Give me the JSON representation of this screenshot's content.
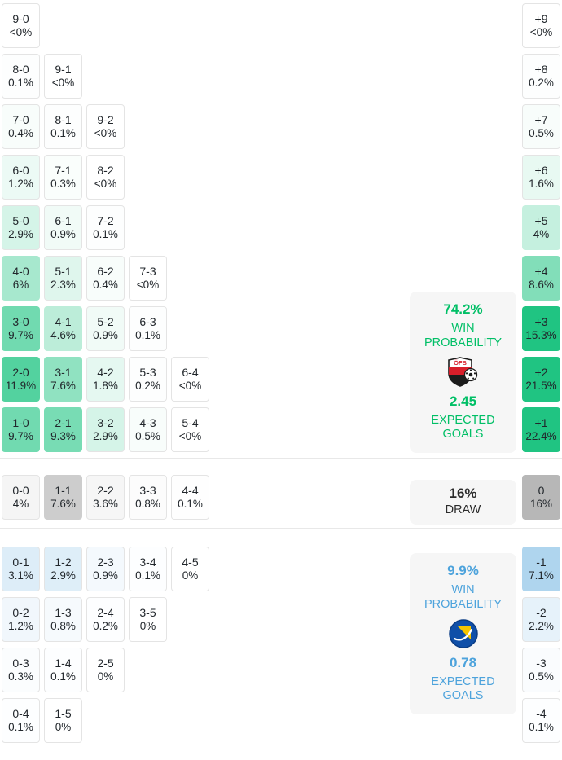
{
  "colors": {
    "win_base": "#17c27d",
    "draw_base": "#6f6f6f",
    "loss_base": "#4a9fd8",
    "win_accent": "#00bf66",
    "loss_accent": "#4da3dc",
    "draw_accent": "#2c2c2c",
    "panel_bg": "#f6f6f6",
    "cell_border": "#e4e4e4",
    "text_dark": "#22272c"
  },
  "icons": {
    "home_crest": "oefb-austria-crest",
    "away_crest": "bosnia-herzegovina-crest"
  },
  "chart_data": {
    "type": "heatmap",
    "description": "Correct-score probability matrix (home score - away score) with goal-difference totals in the right column; green = home win scorelines, grey = draws, blue = away win scorelines; cell shade intensity encodes probability",
    "legend_position": "none",
    "panels": {
      "home": {
        "probability": "74.2%",
        "probability_label": "WIN PROBABILITY",
        "expected_goals": "2.45",
        "expected_goals_label": "EXPECTED GOALS"
      },
      "draw": {
        "probability": "16%",
        "label": "DRAW"
      },
      "away": {
        "probability": "9.9%",
        "probability_label": "WIN PROBABILITY",
        "expected_goals": "0.78",
        "expected_goals_label": "EXPECTED GOALS"
      }
    },
    "sections": {
      "win": {
        "rows": [
          {
            "cells": [
              {
                "score": "9-0",
                "pct": "<0%",
                "a": 0
              }
            ],
            "diff": {
              "label": "+9",
              "pct": "<0%",
              "a": 0
            }
          },
          {
            "cells": [
              {
                "score": "8-0",
                "pct": "0.1%",
                "a": 0.01
              },
              {
                "score": "9-1",
                "pct": "<0%",
                "a": 0
              }
            ],
            "diff": {
              "label": "+8",
              "pct": "0.2%",
              "a": 0.01
            }
          },
          {
            "cells": [
              {
                "score": "7-0",
                "pct": "0.4%",
                "a": 0.03
              },
              {
                "score": "8-1",
                "pct": "0.1%",
                "a": 0.01
              },
              {
                "score": "9-2",
                "pct": "<0%",
                "a": 0
              }
            ],
            "diff": {
              "label": "+7",
              "pct": "0.5%",
              "a": 0.03
            }
          },
          {
            "cells": [
              {
                "score": "6-0",
                "pct": "1.2%",
                "a": 0.08
              },
              {
                "score": "7-1",
                "pct": "0.3%",
                "a": 0.02
              },
              {
                "score": "8-2",
                "pct": "<0%",
                "a": 0
              }
            ],
            "diff": {
              "label": "+6",
              "pct": "1.6%",
              "a": 0.1
            }
          },
          {
            "cells": [
              {
                "score": "5-0",
                "pct": "2.9%",
                "a": 0.18
              },
              {
                "score": "6-1",
                "pct": "0.9%",
                "a": 0.06
              },
              {
                "score": "7-2",
                "pct": "0.1%",
                "a": 0.01
              }
            ],
            "diff": {
              "label": "+5",
              "pct": "4%",
              "a": 0.25
            }
          },
          {
            "cells": [
              {
                "score": "4-0",
                "pct": "6%",
                "a": 0.38
              },
              {
                "score": "5-1",
                "pct": "2.3%",
                "a": 0.14
              },
              {
                "score": "6-2",
                "pct": "0.4%",
                "a": 0.03
              },
              {
                "score": "7-3",
                "pct": "<0%",
                "a": 0
              }
            ],
            "diff": {
              "label": "+4",
              "pct": "8.6%",
              "a": 0.54
            }
          },
          {
            "cells": [
              {
                "score": "3-0",
                "pct": "9.7%",
                "a": 0.61
              },
              {
                "score": "4-1",
                "pct": "4.6%",
                "a": 0.29
              },
              {
                "score": "5-2",
                "pct": "0.9%",
                "a": 0.06
              },
              {
                "score": "6-3",
                "pct": "0.1%",
                "a": 0.01
              }
            ],
            "diff": {
              "label": "+3",
              "pct": "15.3%",
              "a": 0.96
            }
          },
          {
            "cells": [
              {
                "score": "2-0",
                "pct": "11.9%",
                "a": 0.74
              },
              {
                "score": "3-1",
                "pct": "7.6%",
                "a": 0.48
              },
              {
                "score": "4-2",
                "pct": "1.8%",
                "a": 0.11
              },
              {
                "score": "5-3",
                "pct": "0.2%",
                "a": 0.01
              },
              {
                "score": "6-4",
                "pct": "<0%",
                "a": 0
              }
            ],
            "diff": {
              "label": "+2",
              "pct": "21.5%",
              "a": 0.96
            }
          },
          {
            "cells": [
              {
                "score": "1-0",
                "pct": "9.7%",
                "a": 0.61
              },
              {
                "score": "2-1",
                "pct": "9.3%",
                "a": 0.58
              },
              {
                "score": "3-2",
                "pct": "2.9%",
                "a": 0.18
              },
              {
                "score": "4-3",
                "pct": "0.5%",
                "a": 0.03
              },
              {
                "score": "5-4",
                "pct": "<0%",
                "a": 0
              }
            ],
            "diff": {
              "label": "+1",
              "pct": "22.4%",
              "a": 0.96
            }
          }
        ]
      },
      "draw": {
        "rows": [
          {
            "cells": [
              {
                "score": "0-0",
                "pct": "4%",
                "a": 0.07
              },
              {
                "score": "1-1",
                "pct": "7.6%",
                "a": 0.35
              },
              {
                "score": "2-2",
                "pct": "3.6%",
                "a": 0.06
              },
              {
                "score": "3-3",
                "pct": "0.8%",
                "a": 0.02
              },
              {
                "score": "4-4",
                "pct": "0.1%",
                "a": 0.01
              }
            ],
            "diff": {
              "label": "0",
              "pct": "16%",
              "a": 0.5
            }
          }
        ]
      },
      "loss": {
        "rows": [
          {
            "cells": [
              {
                "score": "0-1",
                "pct": "3.1%",
                "a": 0.19
              },
              {
                "score": "1-2",
                "pct": "2.9%",
                "a": 0.18
              },
              {
                "score": "2-3",
                "pct": "0.9%",
                "a": 0.06
              },
              {
                "score": "3-4",
                "pct": "0.1%",
                "a": 0.01
              },
              {
                "score": "4-5",
                "pct": "0%",
                "a": 0
              }
            ],
            "diff": {
              "label": "-1",
              "pct": "7.1%",
              "a": 0.44
            }
          },
          {
            "cells": [
              {
                "score": "0-2",
                "pct": "1.2%",
                "a": 0.08
              },
              {
                "score": "1-3",
                "pct": "0.8%",
                "a": 0.05
              },
              {
                "score": "2-4",
                "pct": "0.2%",
                "a": 0.01
              },
              {
                "score": "3-5",
                "pct": "0%",
                "a": 0
              }
            ],
            "diff": {
              "label": "-2",
              "pct": "2.2%",
              "a": 0.14
            }
          },
          {
            "cells": [
              {
                "score": "0-3",
                "pct": "0.3%",
                "a": 0.02
              },
              {
                "score": "1-4",
                "pct": "0.1%",
                "a": 0.01
              },
              {
                "score": "2-5",
                "pct": "0%",
                "a": 0
              }
            ],
            "diff": {
              "label": "-3",
              "pct": "0.5%",
              "a": 0.03
            }
          },
          {
            "cells": [
              {
                "score": "0-4",
                "pct": "0.1%",
                "a": 0.01
              },
              {
                "score": "1-5",
                "pct": "0%",
                "a": 0
              }
            ],
            "diff": {
              "label": "-4",
              "pct": "0.1%",
              "a": 0.01
            }
          }
        ]
      }
    }
  }
}
